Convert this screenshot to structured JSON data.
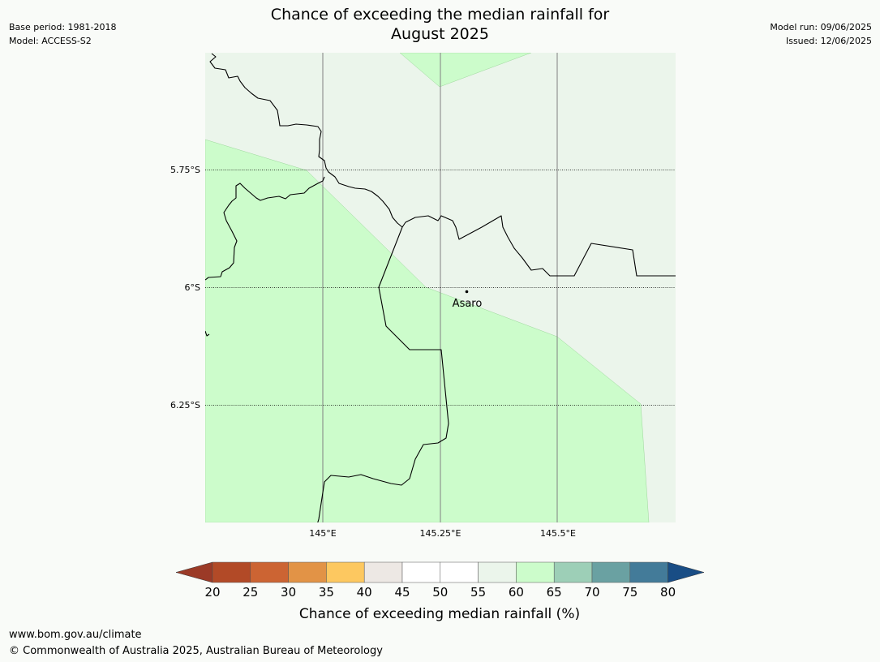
{
  "header": {
    "base_period": "Base period: 1981-2018",
    "model": "Model: ACCESS-S2",
    "model_run": "Model run: 09/06/2025",
    "issued": "Issued: 12/06/2025",
    "title_line1": "Chance of exceeding the median rainfall for",
    "title_line2": "August 2025"
  },
  "map": {
    "lat_labels": [
      "5.75°S",
      "6°S",
      "6.25°S"
    ],
    "lon_labels": [
      "145°E",
      "145.25°E",
      "145.5°E"
    ],
    "place": {
      "name": "Asaro",
      "lon": 145.3,
      "lat": -6.01
    },
    "colors": {
      "green_light": "#ccfccb",
      "green_pale": "#ebf5eb",
      "land_border": "#000000",
      "meridian": "#808080"
    }
  },
  "colorbar": {
    "label": "Chance of exceeding median rainfall (%)",
    "ticks": [
      "20",
      "25",
      "30",
      "35",
      "40",
      "45",
      "50",
      "55",
      "60",
      "65",
      "70",
      "75",
      "80"
    ],
    "colors": [
      "#9b3a27",
      "#b24a27",
      "#cc6433",
      "#e29346",
      "#fdc860",
      "#ede8e4",
      "#ffffff",
      "#ffffff",
      "#ebf5eb",
      "#ccfccb",
      "#9dcfb7",
      "#6aa1a2",
      "#437b99",
      "#194d85"
    ]
  },
  "footer": {
    "url": "www.bom.gov.au/climate",
    "copyright": "© Commonwealth of Australia 2025, Australian Bureau of Meteorology"
  }
}
